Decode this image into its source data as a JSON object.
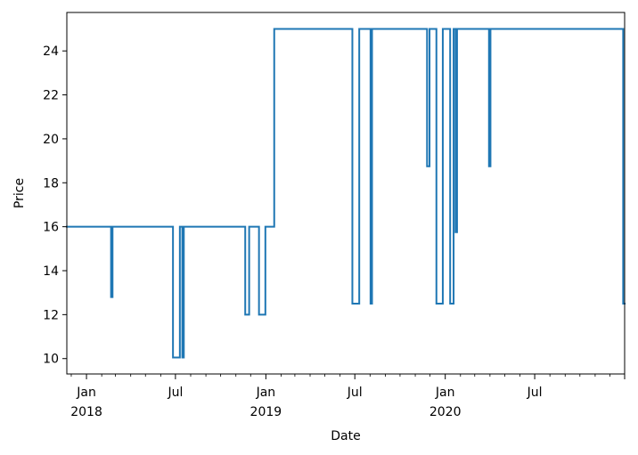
{
  "chart_data": {
    "type": "line",
    "title": "",
    "xlabel": "Date",
    "ylabel": "Price",
    "ylim": [
      9.3,
      25.75
    ],
    "xlim": [
      "2017-11-22",
      "2020-12-31"
    ],
    "grid": false,
    "legend": "none",
    "colors": {
      "line": "#1f77b4",
      "axis": "#000000",
      "background": "#ffffff"
    },
    "y_ticks": [
      10,
      12,
      14,
      16,
      18,
      20,
      22,
      24
    ],
    "x_ticks": [
      {
        "date": "2018-01-01",
        "label": "Jan",
        "sublabel": "2018"
      },
      {
        "date": "2018-07-01",
        "label": "Jul",
        "sublabel": ""
      },
      {
        "date": "2019-01-01",
        "label": "Jan",
        "sublabel": "2019"
      },
      {
        "date": "2019-07-01",
        "label": "Jul",
        "sublabel": ""
      },
      {
        "date": "2020-01-01",
        "label": "Jan",
        "sublabel": "2020"
      },
      {
        "date": "2020-07-01",
        "label": "Jul",
        "sublabel": ""
      },
      {
        "date": "2020-12-31",
        "label": "",
        "sublabel": ""
      }
    ],
    "series": [
      {
        "points": [
          [
            "2017-11-22",
            16
          ],
          [
            "2018-02-20",
            16
          ],
          [
            "2018-02-20",
            12.8
          ],
          [
            "2018-02-23",
            12.8
          ],
          [
            "2018-02-23",
            16
          ],
          [
            "2018-06-26",
            16
          ],
          [
            "2018-06-26",
            10.05
          ],
          [
            "2018-07-10",
            10.05
          ],
          [
            "2018-07-10",
            16
          ],
          [
            "2018-07-15",
            16
          ],
          [
            "2018-07-15",
            10.05
          ],
          [
            "2018-07-18",
            10.05
          ],
          [
            "2018-07-18",
            16
          ],
          [
            "2018-11-20",
            16
          ],
          [
            "2018-11-20",
            12
          ],
          [
            "2018-11-28",
            12
          ],
          [
            "2018-11-28",
            16
          ],
          [
            "2018-12-18",
            16
          ],
          [
            "2018-12-18",
            12
          ],
          [
            "2018-12-31",
            12
          ],
          [
            "2018-12-31",
            16
          ],
          [
            "2019-01-18",
            16
          ],
          [
            "2019-01-18",
            25
          ],
          [
            "2019-06-26",
            25
          ],
          [
            "2019-06-26",
            12.5
          ],
          [
            "2019-07-10",
            12.5
          ],
          [
            "2019-07-10",
            25
          ],
          [
            "2019-08-02",
            25
          ],
          [
            "2019-08-02",
            12.5
          ],
          [
            "2019-08-05",
            12.5
          ],
          [
            "2019-08-05",
            25
          ],
          [
            "2019-11-25",
            25
          ],
          [
            "2019-11-25",
            18.75
          ],
          [
            "2019-11-30",
            18.75
          ],
          [
            "2019-11-30",
            25
          ],
          [
            "2019-12-14",
            25
          ],
          [
            "2019-12-14",
            12.5
          ],
          [
            "2019-12-27",
            12.5
          ],
          [
            "2019-12-27",
            25
          ],
          [
            "2020-01-11",
            25
          ],
          [
            "2020-01-11",
            12.5
          ],
          [
            "2020-01-18",
            12.5
          ],
          [
            "2020-01-18",
            25
          ],
          [
            "2020-01-22",
            25
          ],
          [
            "2020-01-22",
            15.75
          ],
          [
            "2020-01-25",
            15.75
          ],
          [
            "2020-01-25",
            25
          ],
          [
            "2020-03-30",
            25
          ],
          [
            "2020-03-30",
            18.75
          ],
          [
            "2020-04-02",
            18.75
          ],
          [
            "2020-04-02",
            25
          ],
          [
            "2020-12-28",
            25
          ],
          [
            "2020-12-28",
            12.5
          ],
          [
            "2020-12-31",
            12.5
          ]
        ]
      }
    ]
  }
}
